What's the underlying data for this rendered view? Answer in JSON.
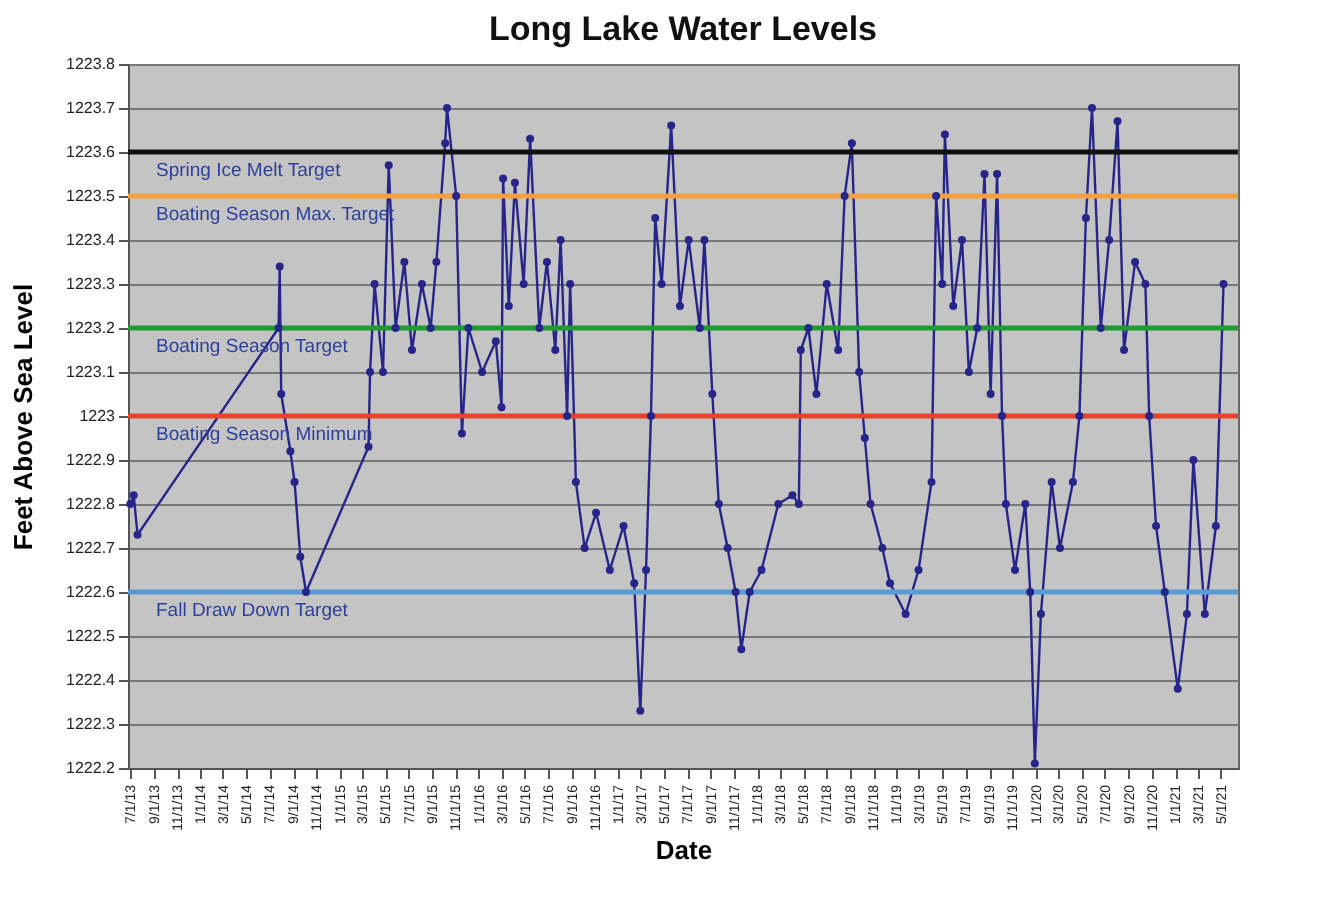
{
  "chart_data": {
    "type": "line",
    "title": "Long Lake Water Levels",
    "xlabel": "Date",
    "ylabel": "Feet Above Sea Level",
    "marker": "circle",
    "line_style": "solid",
    "grid": "y",
    "xlim": [
      "2013-06-25",
      "2021-06-15"
    ],
    "ylim": [
      1222.2,
      1223.8
    ],
    "yticks": [
      1222.2,
      1222.3,
      1222.4,
      1222.5,
      1222.6,
      1222.7,
      1222.8,
      1222.9,
      1223,
      1223.1,
      1223.2,
      1223.3,
      1223.4,
      1223.5,
      1223.6,
      1223.7,
      1223.8
    ],
    "xticks": [
      {
        "value": "2013-07-01",
        "label": "7/1/13"
      },
      {
        "value": "2013-09-01",
        "label": "9/1/13"
      },
      {
        "value": "2013-11-01",
        "label": "11/1/13"
      },
      {
        "value": "2014-01-01",
        "label": "1/1/14"
      },
      {
        "value": "2014-03-01",
        "label": "3/1/14"
      },
      {
        "value": "2014-05-01",
        "label": "5/1/14"
      },
      {
        "value": "2014-07-01",
        "label": "7/1/14"
      },
      {
        "value": "2014-09-01",
        "label": "9/1/14"
      },
      {
        "value": "2014-11-01",
        "label": "11/1/14"
      },
      {
        "value": "2015-01-01",
        "label": "1/1/15"
      },
      {
        "value": "2015-03-01",
        "label": "3/1/15"
      },
      {
        "value": "2015-05-01",
        "label": "5/1/15"
      },
      {
        "value": "2015-07-01",
        "label": "7/1/15"
      },
      {
        "value": "2015-09-01",
        "label": "9/1/15"
      },
      {
        "value": "2015-11-01",
        "label": "11/1/15"
      },
      {
        "value": "2016-01-01",
        "label": "1/1/16"
      },
      {
        "value": "2016-03-01",
        "label": "3/1/16"
      },
      {
        "value": "2016-05-01",
        "label": "5/1/16"
      },
      {
        "value": "2016-07-01",
        "label": "7/1/16"
      },
      {
        "value": "2016-09-01",
        "label": "9/1/16"
      },
      {
        "value": "2016-11-01",
        "label": "11/1/16"
      },
      {
        "value": "2017-01-01",
        "label": "1/1/17"
      },
      {
        "value": "2017-03-01",
        "label": "3/1/17"
      },
      {
        "value": "2017-05-01",
        "label": "5/1/17"
      },
      {
        "value": "2017-07-01",
        "label": "7/1/17"
      },
      {
        "value": "2017-09-01",
        "label": "9/1/17"
      },
      {
        "value": "2017-11-01",
        "label": "11/1/17"
      },
      {
        "value": "2018-01-01",
        "label": "1/1/18"
      },
      {
        "value": "2018-03-01",
        "label": "3/1/18"
      },
      {
        "value": "2018-05-01",
        "label": "5/1/18"
      },
      {
        "value": "2018-07-01",
        "label": "7/1/18"
      },
      {
        "value": "2018-09-01",
        "label": "9/1/18"
      },
      {
        "value": "2018-11-01",
        "label": "11/1/18"
      },
      {
        "value": "2019-01-01",
        "label": "1/1/19"
      },
      {
        "value": "2019-03-01",
        "label": "3/1/19"
      },
      {
        "value": "2019-05-01",
        "label": "5/1/19"
      },
      {
        "value": "2019-07-01",
        "label": "7/1/19"
      },
      {
        "value": "2019-09-01",
        "label": "9/1/19"
      },
      {
        "value": "2019-11-01",
        "label": "11/1/19"
      },
      {
        "value": "2020-01-01",
        "label": "1/1/20"
      },
      {
        "value": "2020-03-01",
        "label": "3/1/20"
      },
      {
        "value": "2020-05-01",
        "label": "5/1/20"
      },
      {
        "value": "2020-07-01",
        "label": "7/1/20"
      },
      {
        "value": "2020-09-01",
        "label": "9/1/20"
      },
      {
        "value": "2020-11-01",
        "label": "11/1/20"
      },
      {
        "value": "2021-01-01",
        "label": "1/1/21"
      },
      {
        "value": "2021-03-01",
        "label": "3/1/21"
      },
      {
        "value": "2021-05-01",
        "label": "5/1/21"
      }
    ],
    "ref_lines": [
      {
        "axis": "y",
        "value": 1223.6,
        "label": "Spring Ice Melt Target",
        "color": "#111111"
      },
      {
        "axis": "y",
        "value": 1223.5,
        "label": "Boating Season Max. Target",
        "color": "#f4a040"
      },
      {
        "axis": "y",
        "value": 1223.2,
        "label": "Boating Season Target",
        "color": "#1f9a30"
      },
      {
        "axis": "y",
        "value": 1223.0,
        "label": "Boating Season Minimum",
        "color": "#e8422a"
      },
      {
        "axis": "y",
        "value": 1222.6,
        "label": "Fall Draw Down Target",
        "color": "#5b9bd5"
      }
    ],
    "series": [
      {
        "color": "#26268a",
        "x": [
          "2013-07-01",
          "2013-07-10",
          "2013-07-20",
          "2014-07-25",
          "2014-07-28",
          "2014-08-01",
          "2014-08-25",
          "2014-09-05",
          "2014-09-20",
          "2014-10-05",
          "2015-03-18",
          "2015-03-22",
          "2015-04-03",
          "2015-04-25",
          "2015-05-10",
          "2015-05-28",
          "2015-06-20",
          "2015-07-10",
          "2015-08-05",
          "2015-08-28",
          "2015-09-12",
          "2015-10-05",
          "2015-10-10",
          "2015-11-03",
          "2015-11-18",
          "2015-12-05",
          "2016-01-10",
          "2016-02-15",
          "2016-03-01",
          "2016-03-05",
          "2016-03-20",
          "2016-04-05",
          "2016-04-28",
          "2016-05-15",
          "2016-06-08",
          "2016-06-28",
          "2016-07-20",
          "2016-08-03",
          "2016-08-20",
          "2016-08-28",
          "2016-09-12",
          "2016-10-05",
          "2016-11-04",
          "2016-12-10",
          "2017-01-15",
          "2017-02-12",
          "2017-02-28",
          "2017-03-15",
          "2017-03-28",
          "2017-04-08",
          "2017-04-25",
          "2017-05-20",
          "2017-06-12",
          "2017-07-05",
          "2017-08-03",
          "2017-08-15",
          "2017-09-05",
          "2017-09-22",
          "2017-10-15",
          "2017-11-05",
          "2017-11-20",
          "2017-12-12",
          "2018-01-12",
          "2018-02-25",
          "2018-04-03",
          "2018-04-20",
          "2018-04-25",
          "2018-05-15",
          "2018-06-05",
          "2018-07-02",
          "2018-08-01",
          "2018-08-18",
          "2018-09-06",
          "2018-09-25",
          "2018-10-10",
          "2018-10-25",
          "2018-11-25",
          "2018-12-15",
          "2019-01-25",
          "2019-02-28",
          "2019-04-03",
          "2019-04-15",
          "2019-05-01",
          "2019-05-08",
          "2019-05-30",
          "2019-06-22",
          "2019-07-10",
          "2019-08-01",
          "2019-08-20",
          "2019-09-05",
          "2019-09-22",
          "2019-10-05",
          "2019-10-15",
          "2019-11-08",
          "2019-12-05",
          "2019-12-18",
          "2019-12-30",
          "2020-01-15",
          "2020-02-12",
          "2020-03-05",
          "2020-04-08",
          "2020-04-25",
          "2020-05-12",
          "2020-05-28",
          "2020-06-20",
          "2020-07-12",
          "2020-08-03",
          "2020-08-20",
          "2020-09-18",
          "2020-10-15",
          "2020-10-25",
          "2020-11-12",
          "2020-12-05",
          "2021-01-08",
          "2021-02-01",
          "2021-02-18",
          "2021-03-20",
          "2021-04-18",
          "2021-05-08"
        ],
        "values": [
          1222.8,
          1222.82,
          1222.73,
          1223.2,
          1223.34,
          1223.05,
          1222.92,
          1222.85,
          1222.68,
          1222.6,
          1222.93,
          1223.1,
          1223.3,
          1223.1,
          1223.57,
          1223.2,
          1223.35,
          1223.15,
          1223.3,
          1223.2,
          1223.35,
          1223.62,
          1223.7,
          1223.5,
          1222.96,
          1223.2,
          1223.1,
          1223.17,
          1223.02,
          1223.54,
          1223.25,
          1223.53,
          1223.3,
          1223.63,
          1223.2,
          1223.35,
          1223.15,
          1223.4,
          1223.0,
          1223.3,
          1222.85,
          1222.7,
          1222.78,
          1222.65,
          1222.75,
          1222.62,
          1222.33,
          1222.65,
          1223.0,
          1223.45,
          1223.3,
          1223.66,
          1223.25,
          1223.4,
          1223.2,
          1223.4,
          1223.05,
          1222.8,
          1222.7,
          1222.6,
          1222.47,
          1222.6,
          1222.65,
          1222.8,
          1222.82,
          1222.8,
          1223.15,
          1223.2,
          1223.05,
          1223.3,
          1223.15,
          1223.5,
          1223.62,
          1223.1,
          1222.95,
          1222.8,
          1222.7,
          1222.62,
          1222.55,
          1222.65,
          1222.85,
          1223.5,
          1223.3,
          1223.64,
          1223.25,
          1223.4,
          1223.1,
          1223.2,
          1223.55,
          1223.05,
          1223.55,
          1223.0,
          1222.8,
          1222.65,
          1222.8,
          1222.6,
          1222.21,
          1222.55,
          1222.85,
          1222.7,
          1222.85,
          1223.0,
          1223.45,
          1223.7,
          1223.2,
          1223.4,
          1223.67,
          1223.15,
          1223.35,
          1223.3,
          1223.0,
          1222.75,
          1222.6,
          1222.38,
          1222.55,
          1222.9,
          1222.55,
          1222.75,
          1223.3
        ]
      }
    ]
  }
}
